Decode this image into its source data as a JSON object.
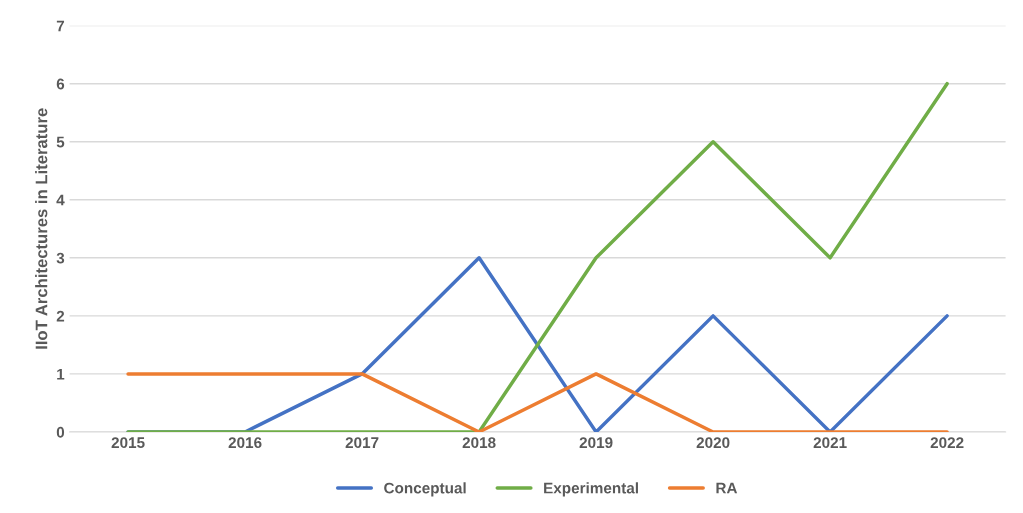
{
  "chart_data": {
    "type": "line",
    "ylabel": "IIoT Architectures in Literature",
    "categories": [
      "2015",
      "2016",
      "2017",
      "2018",
      "2019",
      "2020",
      "2021",
      "2022"
    ],
    "series": [
      {
        "name": "Conceptual",
        "color": "#4472c4",
        "values": [
          0,
          0,
          1,
          3,
          0,
          2,
          0,
          2
        ]
      },
      {
        "name": "Experimental",
        "color": "#70ad47",
        "values": [
          0,
          0,
          0,
          0,
          3,
          5,
          3,
          6
        ]
      },
      {
        "name": "RA",
        "color": "#ed7d31",
        "values": [
          1,
          1,
          1,
          0,
          1,
          0,
          0,
          0
        ]
      }
    ],
    "ylim": [
      0,
      7
    ],
    "yticks": [
      0,
      1,
      2,
      3,
      4,
      5,
      6,
      7
    ],
    "grid": "y",
    "legend": "bottom",
    "marker": "none",
    "line_style": "solid"
  }
}
